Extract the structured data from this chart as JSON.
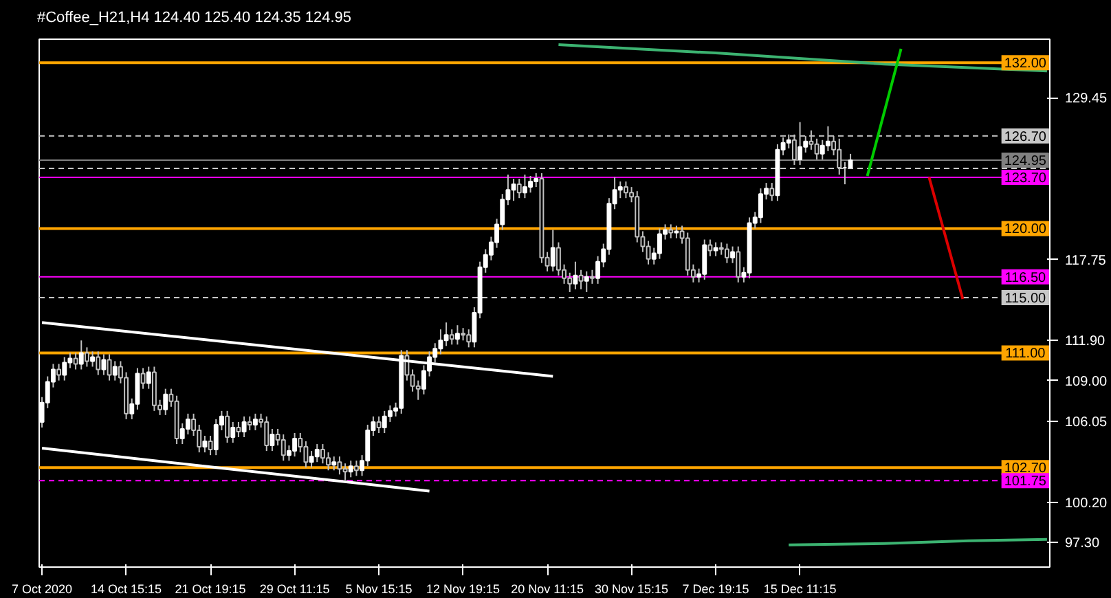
{
  "chart_data": {
    "type": "candlestick",
    "title": "#Coffee_H21,H4  124.40 125.40 124.35 124.95",
    "categories": [
      "7 Oct 2020",
      null,
      null,
      null,
      null,
      null,
      null,
      null,
      null,
      null,
      null,
      null,
      null,
      null,
      null,
      "14 Oct 15:15",
      null,
      null,
      null,
      null,
      null,
      null,
      null,
      null,
      null,
      null,
      null,
      null,
      null,
      null,
      "21 Oct 19:15",
      null,
      null,
      null,
      null,
      null,
      null,
      null,
      null,
      null,
      null,
      null,
      null,
      null,
      null,
      "29 Oct 11:15",
      null,
      null,
      null,
      null,
      null,
      null,
      null,
      null,
      null,
      null,
      null,
      null,
      null,
      null,
      "5 Nov 15:15",
      null,
      null,
      null,
      null,
      null,
      null,
      null,
      null,
      null,
      null,
      null,
      null,
      null,
      null,
      "12 Nov 19:15",
      null,
      null,
      null,
      null,
      null,
      null,
      null,
      null,
      null,
      null,
      null,
      null,
      null,
      null,
      "20 Nov 11:15",
      null,
      null,
      null,
      null,
      null,
      null,
      null,
      null,
      null,
      null,
      null,
      null,
      null,
      null,
      "30 Nov 15:15",
      null,
      null,
      null,
      null,
      null,
      null,
      null,
      null,
      null,
      null,
      null,
      null,
      null,
      null,
      "7 Dec 19:15",
      null,
      null,
      null,
      null,
      null,
      null,
      null,
      null,
      null,
      null,
      null,
      null,
      null,
      null,
      "15 Dec 11:15",
      null,
      null,
      null,
      null,
      null,
      null,
      null,
      null,
      null,
      null,
      null,
      null,
      null,
      null,
      null,
      null,
      null,
      null,
      null,
      null,
      null,
      null,
      null,
      null,
      null,
      null,
      null,
      null,
      null,
      null,
      null,
      null,
      null,
      null,
      null,
      null,
      null,
      null,
      null,
      null,
      null,
      null,
      null,
      null
    ],
    "ohlc": [
      [
        106.0,
        107.8,
        105.6,
        107.4
      ],
      [
        107.4,
        109.3,
        107.0,
        108.9
      ],
      [
        108.9,
        110.2,
        108.5,
        109.8
      ],
      [
        109.8,
        110.2,
        109.0,
        109.4
      ],
      [
        109.4,
        110.7,
        109.0,
        110.3
      ],
      [
        110.3,
        111.0,
        109.9,
        110.6
      ],
      [
        110.6,
        111.0,
        109.8,
        110.2
      ],
      [
        110.2,
        111.9,
        109.8,
        111.0
      ],
      [
        111.0,
        111.4,
        110.0,
        110.4
      ],
      [
        110.4,
        111.1,
        110.0,
        110.7
      ],
      [
        110.7,
        111.1,
        109.4,
        109.8
      ],
      [
        109.8,
        110.9,
        109.4,
        110.5
      ],
      [
        110.5,
        110.9,
        109.0,
        109.4
      ],
      [
        109.4,
        110.4,
        109.0,
        110.0
      ],
      [
        110.0,
        110.4,
        108.8,
        109.2
      ],
      [
        109.2,
        109.6,
        106.2,
        106.6
      ],
      [
        106.6,
        107.7,
        106.2,
        107.3
      ],
      [
        107.3,
        109.9,
        106.9,
        109.5
      ],
      [
        109.5,
        109.9,
        108.4,
        108.8
      ],
      [
        108.8,
        110.0,
        108.4,
        109.6
      ],
      [
        109.6,
        110.0,
        106.8,
        107.2
      ],
      [
        107.2,
        107.6,
        106.5,
        106.9
      ],
      [
        106.9,
        108.4,
        106.5,
        108.0
      ],
      [
        108.0,
        108.4,
        107.1,
        107.5
      ],
      [
        107.5,
        107.9,
        104.4,
        104.8
      ],
      [
        104.8,
        105.9,
        104.4,
        105.5
      ],
      [
        105.5,
        106.6,
        105.1,
        106.2
      ],
      [
        106.2,
        106.6,
        105.0,
        105.4
      ],
      [
        105.4,
        105.8,
        103.8,
        104.2
      ],
      [
        104.2,
        105.0,
        103.8,
        104.6
      ],
      [
        104.6,
        105.0,
        103.6,
        104.0
      ],
      [
        104.0,
        106.2,
        103.6,
        105.8
      ],
      [
        105.8,
        106.8,
        105.4,
        106.4
      ],
      [
        106.4,
        106.8,
        104.5,
        104.9
      ],
      [
        104.9,
        106.0,
        104.5,
        105.6
      ],
      [
        105.6,
        106.0,
        104.9,
        105.3
      ],
      [
        105.3,
        106.4,
        104.9,
        106.0
      ],
      [
        106.0,
        106.4,
        105.4,
        105.8
      ],
      [
        105.8,
        106.6,
        105.4,
        106.2
      ],
      [
        106.2,
        106.6,
        105.6,
        106.0
      ],
      [
        106.0,
        106.4,
        103.9,
        104.3
      ],
      [
        104.3,
        105.5,
        103.9,
        105.1
      ],
      [
        105.1,
        105.5,
        104.3,
        104.7
      ],
      [
        104.7,
        105.1,
        103.2,
        103.6
      ],
      [
        103.6,
        104.3,
        103.2,
        103.9
      ],
      [
        103.9,
        105.2,
        103.5,
        104.8
      ],
      [
        104.8,
        105.2,
        103.8,
        104.2
      ],
      [
        104.2,
        104.6,
        102.7,
        103.1
      ],
      [
        103.1,
        103.9,
        102.7,
        103.5
      ],
      [
        103.5,
        104.4,
        103.1,
        104.0
      ],
      [
        104.0,
        104.4,
        103.0,
        103.4
      ],
      [
        103.4,
        103.8,
        102.5,
        102.9
      ],
      [
        102.9,
        103.5,
        102.5,
        103.1
      ],
      [
        103.1,
        103.5,
        102.2,
        102.6
      ],
      [
        102.6,
        103.0,
        101.8,
        102.4
      ],
      [
        102.4,
        103.2,
        102.0,
        102.8
      ],
      [
        102.8,
        103.2,
        102.1,
        102.5
      ],
      [
        102.5,
        103.6,
        102.1,
        103.2
      ],
      [
        103.2,
        105.8,
        102.8,
        105.4
      ],
      [
        105.4,
        106.4,
        105.0,
        106.0
      ],
      [
        106.0,
        106.4,
        105.2,
        105.6
      ],
      [
        105.6,
        106.8,
        105.2,
        106.4
      ],
      [
        106.4,
        107.2,
        106.0,
        106.8
      ],
      [
        106.8,
        107.4,
        106.4,
        107.0
      ],
      [
        107.0,
        111.2,
        106.6,
        110.8
      ],
      [
        110.8,
        111.2,
        109.0,
        109.4
      ],
      [
        109.4,
        109.8,
        108.2,
        108.6
      ],
      [
        108.6,
        109.0,
        107.6,
        108.4
      ],
      [
        108.4,
        110.1,
        108.0,
        109.7
      ],
      [
        109.7,
        111.1,
        109.3,
        110.7
      ],
      [
        110.7,
        111.7,
        110.3,
        111.3
      ],
      [
        111.3,
        112.7,
        110.9,
        111.9
      ],
      [
        111.9,
        113.2,
        111.5,
        112.3
      ],
      [
        112.3,
        112.7,
        111.6,
        112.0
      ],
      [
        112.0,
        113.0,
        111.6,
        112.4
      ],
      [
        112.4,
        112.8,
        111.9,
        112.3
      ],
      [
        112.3,
        112.7,
        111.4,
        111.8
      ],
      [
        111.8,
        114.3,
        111.4,
        113.9
      ],
      [
        113.9,
        117.6,
        113.5,
        117.2
      ],
      [
        117.2,
        118.5,
        116.8,
        118.1
      ],
      [
        118.1,
        119.4,
        117.7,
        119.0
      ],
      [
        119.0,
        120.7,
        118.6,
        120.3
      ],
      [
        120.3,
        122.5,
        119.9,
        122.1
      ],
      [
        122.1,
        123.9,
        121.7,
        122.8
      ],
      [
        122.8,
        123.6,
        122.0,
        123.2
      ],
      [
        123.2,
        123.6,
        122.2,
        122.6
      ],
      [
        122.6,
        123.9,
        122.2,
        123.0
      ],
      [
        123.0,
        123.8,
        122.6,
        123.4
      ],
      [
        123.4,
        124.0,
        123.0,
        123.6
      ],
      [
        123.6,
        124.0,
        117.5,
        117.9
      ],
      [
        117.9,
        118.3,
        116.9,
        117.3
      ],
      [
        117.3,
        119.9,
        116.9,
        118.6
      ],
      [
        118.6,
        119.0,
        116.6,
        117.0
      ],
      [
        117.0,
        117.4,
        116.0,
        116.4
      ],
      [
        116.4,
        116.8,
        115.4,
        116.0
      ],
      [
        116.0,
        117.6,
        115.6,
        116.6
      ],
      [
        116.6,
        117.0,
        115.6,
        116.2
      ],
      [
        116.2,
        116.9,
        115.4,
        116.5
      ],
      [
        116.5,
        117.0,
        116.0,
        116.4
      ],
      [
        116.4,
        118.0,
        116.0,
        117.6
      ],
      [
        117.6,
        118.9,
        117.2,
        118.5
      ],
      [
        118.5,
        122.2,
        118.1,
        121.8
      ],
      [
        121.8,
        123.7,
        121.4,
        122.8
      ],
      [
        122.8,
        123.4,
        122.2,
        123.0
      ],
      [
        123.0,
        123.4,
        122.2,
        122.6
      ],
      [
        122.6,
        123.0,
        121.9,
        122.3
      ],
      [
        122.3,
        122.7,
        119.0,
        119.4
      ],
      [
        119.4,
        119.8,
        118.3,
        118.7
      ],
      [
        118.7,
        119.1,
        117.4,
        117.8
      ],
      [
        117.8,
        118.6,
        117.4,
        118.2
      ],
      [
        118.2,
        120.0,
        117.8,
        119.6
      ],
      [
        119.6,
        120.3,
        119.2,
        119.9
      ],
      [
        119.9,
        120.3,
        119.3,
        119.7
      ],
      [
        119.7,
        120.2,
        119.3,
        119.8
      ],
      [
        119.8,
        120.2,
        118.9,
        119.3
      ],
      [
        119.3,
        119.7,
        116.6,
        117.0
      ],
      [
        117.0,
        117.4,
        116.1,
        116.5
      ],
      [
        116.5,
        117.1,
        116.1,
        116.7
      ],
      [
        116.7,
        119.2,
        116.3,
        118.8
      ],
      [
        118.8,
        119.2,
        118.0,
        118.4
      ],
      [
        118.4,
        119.0,
        118.0,
        118.6
      ],
      [
        118.6,
        119.0,
        118.1,
        118.5
      ],
      [
        118.5,
        118.9,
        117.5,
        117.9
      ],
      [
        117.9,
        118.7,
        117.5,
        118.3
      ],
      [
        118.3,
        118.7,
        116.1,
        116.5
      ],
      [
        116.5,
        117.2,
        116.1,
        116.8
      ],
      [
        116.8,
        120.8,
        116.4,
        120.4
      ],
      [
        120.4,
        121.2,
        120.0,
        120.8
      ],
      [
        120.8,
        122.9,
        120.4,
        122.5
      ],
      [
        122.5,
        123.3,
        122.1,
        122.9
      ],
      [
        122.9,
        123.3,
        122.0,
        122.4
      ],
      [
        122.4,
        126.1,
        122.0,
        125.7
      ],
      [
        125.7,
        126.6,
        125.3,
        126.2
      ],
      [
        126.2,
        126.8,
        125.8,
        126.4
      ],
      [
        126.4,
        126.8,
        124.6,
        125.0
      ],
      [
        125.0,
        127.7,
        124.6,
        125.9
      ],
      [
        125.9,
        126.7,
        125.5,
        126.3
      ],
      [
        126.3,
        127.1,
        125.7,
        126.1
      ],
      [
        126.1,
        126.5,
        125.0,
        125.4
      ],
      [
        125.4,
        126.4,
        125.0,
        126.0
      ],
      [
        126.0,
        127.4,
        125.6,
        126.3
      ],
      [
        126.3,
        126.7,
        125.3,
        125.7
      ],
      [
        125.7,
        126.5,
        123.9,
        124.4
      ],
      [
        124.4,
        124.8,
        123.2,
        124.4
      ],
      [
        124.4,
        125.4,
        124.35,
        124.95
      ],
      null,
      null,
      null,
      null,
      null,
      null,
      null,
      null,
      null,
      null,
      null,
      null,
      null,
      null,
      null,
      null,
      null,
      null,
      null,
      null,
      null,
      null,
      null,
      null,
      null,
      null,
      null,
      null,
      null,
      null,
      null,
      null,
      null,
      null,
      null
    ],
    "series": [
      {
        "type": "line",
        "color": "#ffffff",
        "values": [
          113.2,
          null,
          null,
          null,
          null,
          null,
          null,
          null,
          null,
          null,
          null,
          null,
          null,
          null,
          null,
          null,
          null,
          null,
          null,
          null,
          null,
          null,
          null,
          null,
          null,
          null,
          null,
          null,
          null,
          null,
          null,
          null,
          null,
          null,
          null,
          null,
          null,
          null,
          null,
          null,
          null,
          null,
          null,
          null,
          null,
          null,
          null,
          null,
          null,
          null,
          null,
          null,
          null,
          null,
          null,
          null,
          null,
          null,
          null,
          null,
          null,
          null,
          null,
          null,
          null,
          null,
          null,
          null,
          null,
          null,
          null,
          null,
          null,
          null,
          null,
          null,
          null,
          null,
          null,
          null,
          null,
          null,
          null,
          null,
          null,
          null,
          null,
          null,
          null,
          null,
          null,
          109.3,
          null,
          null,
          null,
          null,
          null,
          null,
          null,
          null,
          null,
          null,
          null,
          null,
          null,
          null,
          null,
          null,
          null,
          null,
          null,
          null,
          null,
          null,
          null,
          null,
          null,
          null,
          null,
          null,
          null,
          null,
          null,
          null,
          null,
          null,
          null,
          null,
          null,
          null,
          null,
          null,
          null,
          null,
          null,
          null,
          null,
          null,
          null,
          null,
          null,
          null,
          null,
          null,
          null,
          null,
          null,
          null,
          null,
          null,
          null,
          null,
          null,
          null,
          null,
          null,
          null,
          null,
          null,
          null,
          null,
          null,
          null,
          null,
          null,
          null,
          null,
          null,
          null,
          null,
          null,
          null,
          null,
          null,
          null,
          null,
          null,
          null,
          null,
          null
        ]
      },
      {
        "type": "line",
        "color": "#ffffff",
        "values": [
          104.1,
          null,
          null,
          null,
          null,
          null,
          null,
          null,
          null,
          null,
          null,
          null,
          null,
          null,
          null,
          null,
          null,
          null,
          null,
          null,
          null,
          null,
          null,
          null,
          null,
          null,
          null,
          null,
          null,
          null,
          null,
          null,
          null,
          null,
          null,
          null,
          null,
          null,
          null,
          null,
          null,
          null,
          null,
          null,
          null,
          null,
          null,
          null,
          null,
          null,
          null,
          null,
          null,
          null,
          null,
          null,
          null,
          null,
          null,
          null,
          null,
          null,
          null,
          null,
          null,
          null,
          null,
          null,
          null,
          101.0,
          null,
          null,
          null,
          null,
          null,
          null,
          null,
          null,
          null,
          null,
          null,
          null,
          null,
          null,
          null,
          null,
          null,
          null,
          null,
          null,
          null,
          null,
          null,
          null,
          null,
          null,
          null,
          null,
          null,
          null,
          null,
          null,
          null,
          null,
          null,
          null,
          null,
          null,
          null,
          null,
          null,
          null,
          null,
          null,
          null,
          null,
          null,
          null,
          null,
          null,
          null,
          null,
          null,
          null,
          null,
          null,
          null,
          null,
          null,
          null,
          null,
          null,
          null,
          null,
          null,
          null,
          null,
          null,
          null,
          null,
          null,
          null,
          null,
          null,
          null,
          null,
          null,
          null,
          null,
          null,
          null,
          null,
          null,
          null,
          null,
          null,
          null,
          null,
          null,
          null,
          null,
          null,
          null,
          null,
          null,
          null,
          null,
          null,
          null,
          null,
          null,
          null,
          null,
          null,
          null,
          null,
          null,
          null,
          null,
          null
        ]
      },
      {
        "type": "line",
        "color": "#3cb371",
        "values": [
          null,
          null,
          null,
          null,
          null,
          null,
          null,
          null,
          null,
          null,
          null,
          null,
          null,
          null,
          null,
          null,
          null,
          null,
          null,
          null,
          null,
          null,
          null,
          null,
          null,
          null,
          null,
          null,
          null,
          null,
          null,
          null,
          null,
          null,
          null,
          null,
          null,
          null,
          null,
          null,
          null,
          null,
          null,
          null,
          null,
          null,
          null,
          null,
          null,
          null,
          null,
          null,
          null,
          null,
          null,
          null,
          null,
          null,
          null,
          null,
          null,
          null,
          null,
          null,
          null,
          null,
          null,
          null,
          null,
          null,
          null,
          null,
          null,
          null,
          null,
          null,
          null,
          null,
          null,
          null,
          null,
          null,
          null,
          null,
          null,
          null,
          null,
          null,
          null,
          null,
          null,
          null,
          133.3,
          null,
          null,
          null,
          null,
          null,
          null,
          null,
          null,
          null,
          null,
          null,
          null,
          null,
          null,
          null,
          null,
          null,
          null,
          null,
          null,
          null,
          null,
          null,
          null,
          null,
          null,
          null,
          132.7,
          null,
          null,
          null,
          null,
          null,
          null,
          null,
          null,
          null,
          null,
          null,
          null,
          null,
          null,
          null,
          null,
          null,
          null,
          null,
          null,
          null,
          null,
          null,
          null,
          null,
          null,
          null,
          null,
          null,
          131.9,
          null,
          null,
          null,
          null,
          null,
          null,
          null,
          null,
          null,
          null,
          null,
          null,
          null,
          null,
          null,
          null,
          null,
          null,
          null,
          null,
          null,
          null,
          null,
          null,
          null,
          null,
          null,
          null,
          131.4
        ]
      },
      {
        "type": "line",
        "color": "#3cb371",
        "values": [
          null,
          null,
          null,
          null,
          null,
          null,
          null,
          null,
          null,
          null,
          null,
          null,
          null,
          null,
          null,
          null,
          null,
          null,
          null,
          null,
          null,
          null,
          null,
          null,
          null,
          null,
          null,
          null,
          null,
          null,
          null,
          null,
          null,
          null,
          null,
          null,
          null,
          null,
          null,
          null,
          null,
          null,
          null,
          null,
          null,
          null,
          null,
          null,
          null,
          null,
          null,
          null,
          null,
          null,
          null,
          null,
          null,
          null,
          null,
          null,
          null,
          null,
          null,
          null,
          null,
          null,
          null,
          null,
          null,
          null,
          null,
          null,
          null,
          null,
          null,
          null,
          null,
          null,
          null,
          null,
          null,
          null,
          null,
          null,
          null,
          null,
          null,
          null,
          null,
          null,
          null,
          null,
          null,
          null,
          null,
          null,
          null,
          null,
          null,
          null,
          null,
          null,
          null,
          null,
          null,
          null,
          null,
          null,
          null,
          null,
          null,
          null,
          null,
          null,
          null,
          null,
          null,
          null,
          null,
          null,
          null,
          null,
          null,
          null,
          null,
          null,
          null,
          null,
          null,
          null,
          null,
          null,
          null,
          97.1,
          null,
          null,
          null,
          null,
          null,
          null,
          null,
          null,
          null,
          null,
          null,
          null,
          null,
          null,
          null,
          null,
          97.2,
          null,
          null,
          null,
          null,
          null,
          null,
          null,
          null,
          null,
          null,
          null,
          null,
          null,
          null,
          97.4,
          null,
          null,
          null,
          null,
          null,
          null,
          null,
          null,
          null,
          null,
          null,
          null,
          null,
          97.5
        ]
      },
      {
        "type": "line",
        "color": "#00cc00",
        "values": [
          null,
          null,
          null,
          null,
          null,
          null,
          null,
          null,
          null,
          null,
          null,
          null,
          null,
          null,
          null,
          null,
          null,
          null,
          null,
          null,
          null,
          null,
          null,
          null,
          null,
          null,
          null,
          null,
          null,
          null,
          null,
          null,
          null,
          null,
          null,
          null,
          null,
          null,
          null,
          null,
          null,
          null,
          null,
          null,
          null,
          null,
          null,
          null,
          null,
          null,
          null,
          null,
          null,
          null,
          null,
          null,
          null,
          null,
          null,
          null,
          null,
          null,
          null,
          null,
          null,
          null,
          null,
          null,
          null,
          null,
          null,
          null,
          null,
          null,
          null,
          null,
          null,
          null,
          null,
          null,
          null,
          null,
          null,
          null,
          null,
          null,
          null,
          null,
          null,
          null,
          null,
          null,
          null,
          null,
          null,
          null,
          null,
          null,
          null,
          null,
          null,
          null,
          null,
          null,
          null,
          null,
          null,
          null,
          null,
          null,
          null,
          null,
          null,
          null,
          null,
          null,
          null,
          null,
          null,
          null,
          null,
          null,
          null,
          null,
          null,
          null,
          null,
          null,
          null,
          null,
          null,
          null,
          null,
          null,
          null,
          null,
          null,
          null,
          null,
          null,
          null,
          null,
          null,
          null,
          null,
          null,
          null,
          123.8,
          null,
          null,
          null,
          null,
          null,
          133.0,
          null,
          null,
          null,
          null,
          null,
          null,
          null,
          null,
          null,
          null,
          null,
          null,
          null,
          null,
          null,
          null,
          null,
          null,
          null,
          null,
          null,
          null,
          null,
          null,
          null,
          null
        ]
      },
      {
        "type": "line",
        "color": "#dd0000",
        "values": [
          null,
          null,
          null,
          null,
          null,
          null,
          null,
          null,
          null,
          null,
          null,
          null,
          null,
          null,
          null,
          null,
          null,
          null,
          null,
          null,
          null,
          null,
          null,
          null,
          null,
          null,
          null,
          null,
          null,
          null,
          null,
          null,
          null,
          null,
          null,
          null,
          null,
          null,
          null,
          null,
          null,
          null,
          null,
          null,
          null,
          null,
          null,
          null,
          null,
          null,
          null,
          null,
          null,
          null,
          null,
          null,
          null,
          null,
          null,
          null,
          null,
          null,
          null,
          null,
          null,
          null,
          null,
          null,
          null,
          null,
          null,
          null,
          null,
          null,
          null,
          null,
          null,
          null,
          null,
          null,
          null,
          null,
          null,
          null,
          null,
          null,
          null,
          null,
          null,
          null,
          null,
          null,
          null,
          null,
          null,
          null,
          null,
          null,
          null,
          null,
          null,
          null,
          null,
          null,
          null,
          null,
          null,
          null,
          null,
          null,
          null,
          null,
          null,
          null,
          null,
          null,
          null,
          null,
          null,
          null,
          null,
          null,
          null,
          null,
          null,
          null,
          null,
          null,
          null,
          null,
          null,
          null,
          null,
          null,
          null,
          null,
          null,
          null,
          null,
          null,
          null,
          null,
          null,
          null,
          null,
          null,
          null,
          null,
          null,
          null,
          null,
          null,
          null,
          null,
          null,
          null,
          null,
          null,
          123.7,
          null,
          null,
          null,
          null,
          null,
          114.9,
          null,
          null,
          null,
          null,
          null,
          null,
          null,
          null,
          null,
          null,
          null,
          null,
          null,
          null,
          null
        ]
      }
    ],
    "ylim": [
      95.5,
      133.7
    ],
    "yticks": [
      {
        "value": 97.3,
        "label": "97.30"
      },
      {
        "value": 100.2,
        "label": "100.20"
      },
      {
        "value": 106.05,
        "label": "106.05"
      },
      {
        "value": 109.0,
        "label": "109.00"
      },
      {
        "value": 111.9,
        "label": "111.90"
      },
      {
        "value": 117.75,
        "label": "117.75"
      },
      {
        "value": 129.45,
        "label": "129.45"
      }
    ],
    "ref_lines": [
      {
        "axis": "y",
        "value": 132.0,
        "label": "132.00",
        "color": "#ffa500",
        "line_style": "solid"
      },
      {
        "axis": "y",
        "value": 126.7,
        "label": "126.70",
        "color": "#c8c8c8",
        "line_style": "dashed"
      },
      {
        "axis": "y",
        "value": 124.95,
        "label": "124.95",
        "color": "#808080",
        "line_style": "solid"
      },
      {
        "axis": "y",
        "value": 124.35,
        "label": null,
        "color": "#c8c8c8",
        "line_style": "dashed"
      },
      {
        "axis": "y",
        "value": 123.7,
        "label": "123.70",
        "color": "#ff00ff",
        "line_style": "solid"
      },
      {
        "axis": "y",
        "value": 120.0,
        "label": "120.00",
        "color": "#ffa500",
        "line_style": "solid"
      },
      {
        "axis": "y",
        "value": 116.5,
        "label": "116.50",
        "color": "#ff00ff",
        "line_style": "solid"
      },
      {
        "axis": "y",
        "value": 115.0,
        "label": "115.00",
        "color": "#c8c8c8",
        "line_style": "dashed"
      },
      {
        "axis": "y",
        "value": 111.0,
        "label": "111.00",
        "color": "#ffa500",
        "line_style": "solid"
      },
      {
        "axis": "y",
        "value": 102.7,
        "label": "102.70",
        "color": "#ffa500",
        "line_style": "solid"
      },
      {
        "axis": "y",
        "value": 101.75,
        "label": "101.75",
        "color": "#ff00ff",
        "line_style": "dashed"
      }
    ],
    "grid": false
  }
}
